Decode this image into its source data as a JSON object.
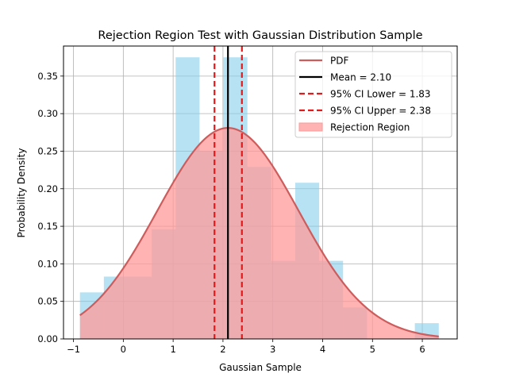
{
  "chart_data": {
    "type": "bar",
    "title": "Rejection Region Test with Gaussian Distribution Sample",
    "xlabel": "Gaussian Sample",
    "ylabel": "Probability Density",
    "xlim": [
      -1.2,
      6.7
    ],
    "ylim": [
      0,
      0.39
    ],
    "xticks": [
      -1,
      0,
      1,
      2,
      3,
      4,
      5,
      6
    ],
    "yticks": [
      0.0,
      0.05,
      0.1,
      0.15,
      0.2,
      0.25,
      0.3,
      0.35
    ],
    "xtick_labels": [
      "−1",
      "0",
      "1",
      "2",
      "3",
      "4",
      "5",
      "6"
    ],
    "ytick_labels": [
      "0.00",
      "0.05",
      "0.10",
      "0.15",
      "0.20",
      "0.25",
      "0.30",
      "0.35"
    ],
    "grid": true,
    "legend_position": "top-right",
    "histogram": {
      "bin_width": 0.48,
      "bin_lefts": [
        -0.87,
        -0.39,
        0.09,
        0.57,
        1.05,
        1.53,
        2.01,
        2.49,
        2.97,
        3.45,
        3.93,
        4.41,
        4.89,
        5.37,
        5.85
      ],
      "densities": [
        0.062,
        0.083,
        0.083,
        0.146,
        0.375,
        0.25,
        0.375,
        0.229,
        0.104,
        0.208,
        0.104,
        0.042,
        0.0,
        0.0,
        0.021
      ],
      "color": "#87ceeb"
    },
    "pdf": {
      "name": "PDF",
      "mean": 2.1,
      "std": 1.42,
      "x_range": [
        -0.87,
        6.33
      ],
      "color": "#cd5c5c"
    },
    "mean_line": {
      "name": "Mean = 2.10",
      "x": 2.1,
      "color": "#000000"
    },
    "ci_lower": {
      "name": "95% CI Lower = 1.83",
      "x": 1.83,
      "color": "#e31a1c"
    },
    "ci_upper": {
      "name": "95% CI Upper = 2.38",
      "x": 2.38,
      "color": "#e31a1c"
    },
    "rejection_region": {
      "name": "Rejection Region",
      "color": "#ff9999"
    }
  }
}
